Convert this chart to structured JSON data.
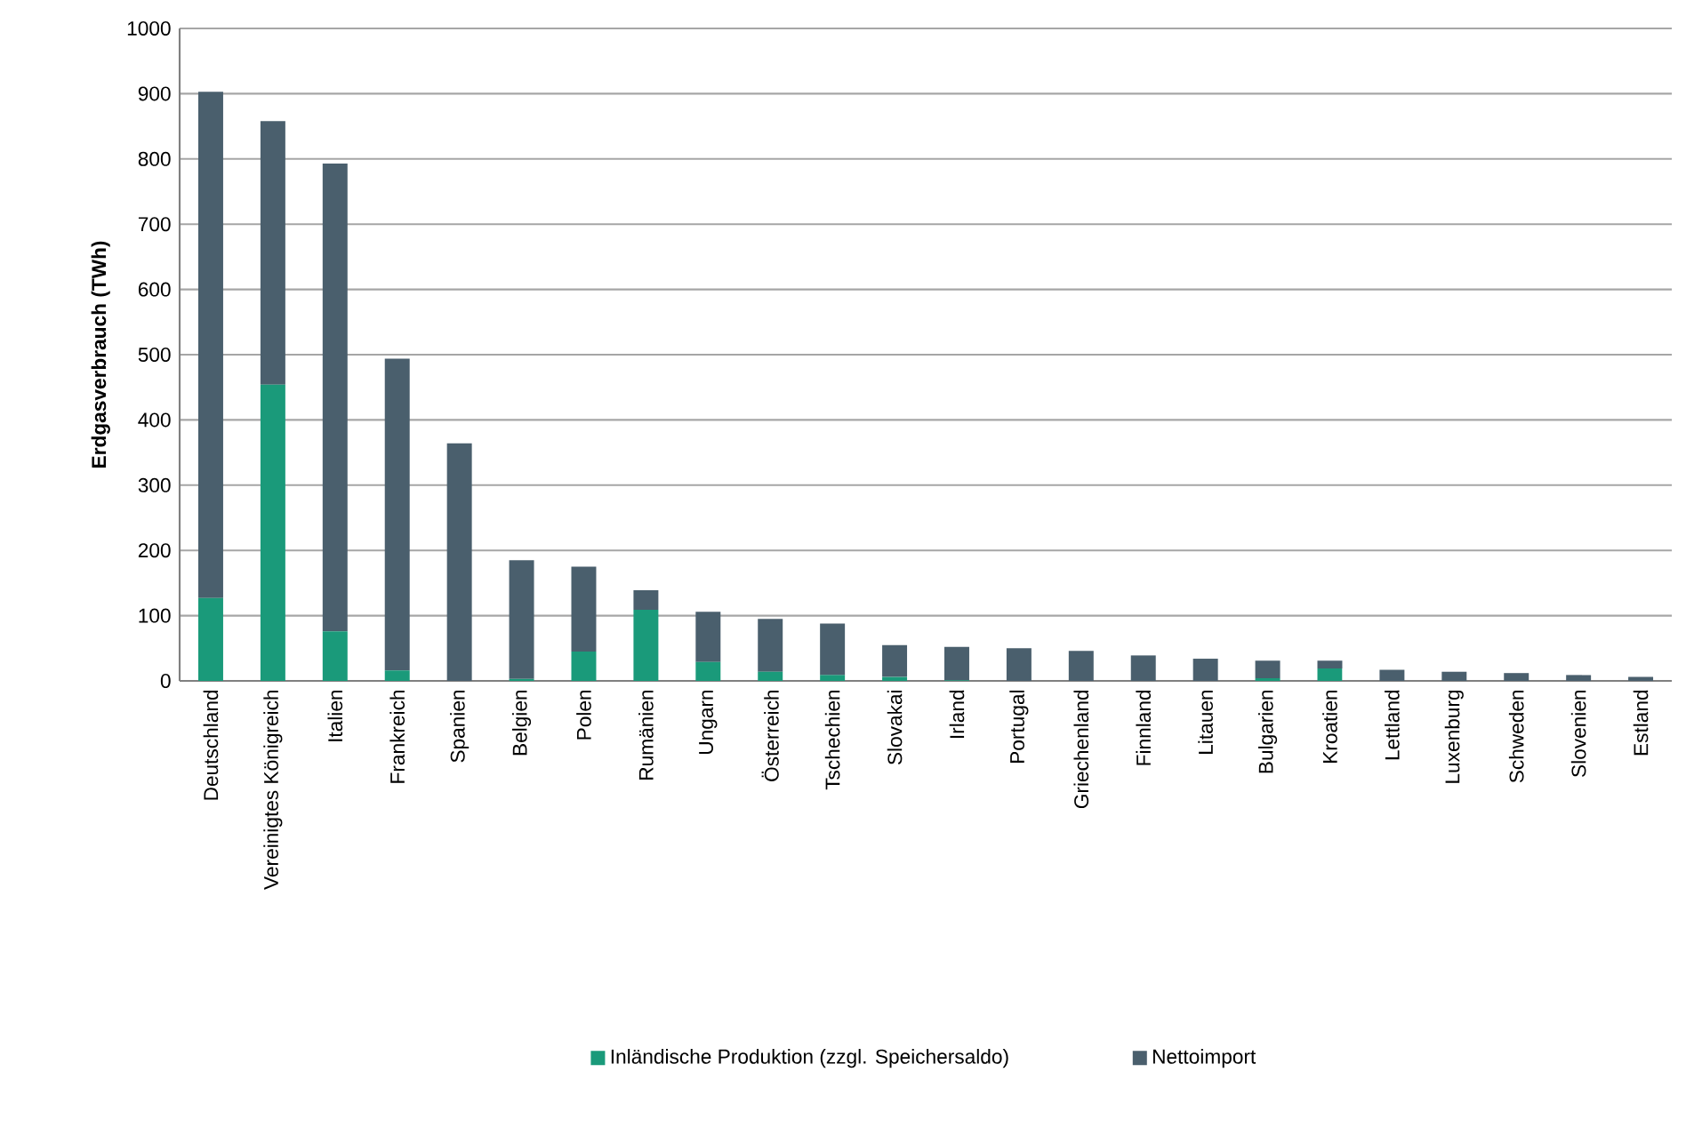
{
  "chart_data": {
    "type": "bar",
    "stacked": true,
    "ylabel": "Erdgasverbrauch (TWh)",
    "categories": [
      "Deutschland",
      "Vereinigtes Königreich",
      "Italien",
      "Frankreich",
      "Spanien",
      "Belgien",
      "Polen",
      "Rumänien",
      "Ungarn",
      "Österreich",
      "Tschechien",
      "Slovakai",
      "Irland",
      "Portugal",
      "Griechenland",
      "Finnland",
      "Litauen",
      "Bulgarien",
      "Kroatien",
      "Lettland",
      "Luxenburg",
      "Schweden",
      "Slovenien",
      "Estland"
    ],
    "series": [
      {
        "name": "Inländische Produktion (zzgl. Speichersaldo)",
        "color": "#1a9a7a",
        "values": [
          127,
          454,
          76,
          16,
          0,
          3,
          45,
          109,
          29,
          14,
          9,
          6,
          1,
          0,
          0,
          0,
          0,
          4,
          19,
          0,
          0,
          0,
          0,
          0
        ]
      },
      {
        "name": "Nettoimport",
        "color": "#4a5f6d",
        "values": [
          776,
          404,
          717,
          478,
          364,
          182,
          130,
          30,
          77,
          81,
          79,
          49,
          51,
          50,
          46,
          39,
          34,
          27,
          12,
          17,
          14,
          12,
          9,
          6
        ]
      }
    ],
    "ylim": [
      0,
      1000
    ],
    "yticks": [
      0,
      100,
      200,
      300,
      400,
      500,
      600,
      700,
      800,
      900,
      1000
    ],
    "grid": "y",
    "legend": "bottom"
  }
}
